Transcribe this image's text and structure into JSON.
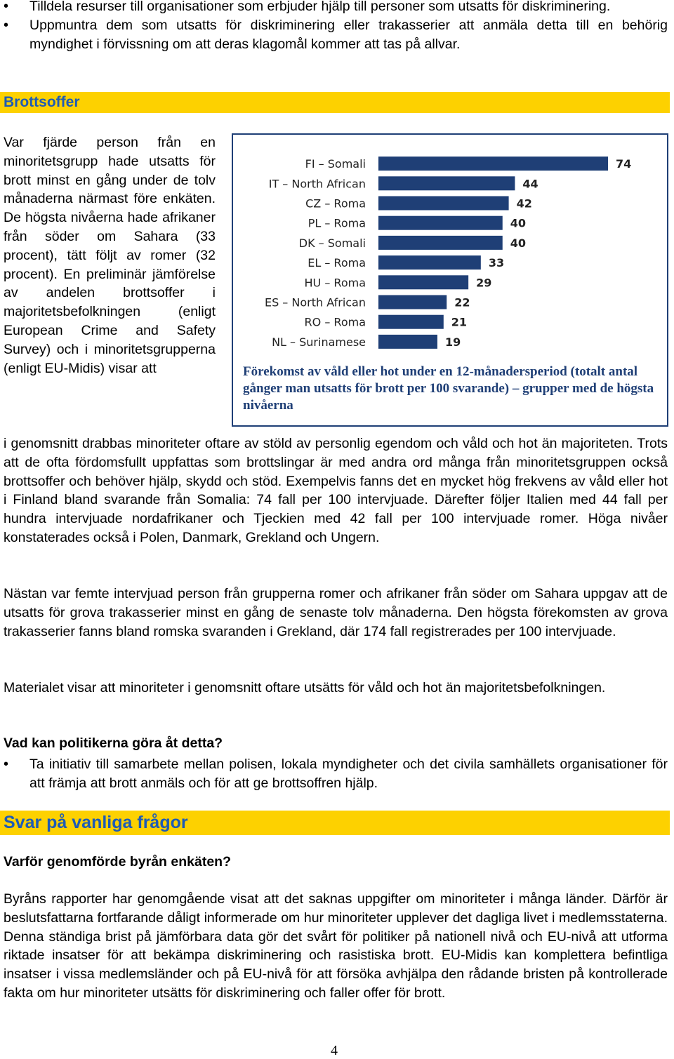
{
  "top_bullets": [
    "Tilldela resurser till organisationer som erbjuder hjälp till personer som utsatts för diskriminering.",
    "Uppmuntra dem som utsatts för diskriminering eller trakasserier att anmäla detta till en behörig myndighet i förvissning om att deras klagomål kommer att tas på allvar."
  ],
  "section1": {
    "title": "Brottsoffer"
  },
  "left_col_text": "Var fjärde person från en minoritetsgrupp hade utsatts för brott minst en gång under de tolv månaderna närmast före enkäten. De högsta nivåerna hade afrikaner från söder om Sahara (33 procent), tätt följt av romer (32 procent). En preliminär jämförelse av andelen brottsoffer i majoritetsbefolkningen (enligt European Crime and Safety Survey) och i minoritetsgrupperna (enligt EU-Midis) visar att",
  "chart_data": {
    "type": "bar",
    "orientation": "horizontal",
    "categories": [
      "FI – Somali",
      "IT – North African",
      "CZ – Roma",
      "PL – Roma",
      "DK – Somali",
      "EL – Roma",
      "HU – Roma",
      "ES – North African",
      "RO – Roma",
      "NL – Surinamese"
    ],
    "values": [
      74,
      44,
      42,
      40,
      40,
      33,
      29,
      22,
      21,
      19
    ],
    "caption": "Förekomst av våld eller hot under en 12-månadersperiod (totalt antal gånger man utsatts för brott per 100 svarande) – grupper med de högsta nivåerna",
    "bar_color": "#1f3f76",
    "xlim": [
      0,
      74
    ]
  },
  "para_continue": "i genomsnitt drabbas minoriteter oftare av stöld av personlig egendom och våld och hot än majoriteten. Trots att de ofta fördomsfullt uppfattas som brottslingar är med andra ord många från minoritetsgruppen också brottsoffer och behöver hjälp, skydd och stöd. Exempelvis fanns det en mycket hög frekvens av våld eller hot i Finland bland svarande från Somalia: 74 fall per 100 intervjuade. Därefter följer Italien med 44 fall per hundra intervjuade nordafrikaner och Tjeckien med 42 fall per 100 intervjuade romer. Höga nivåer konstaterades också i Polen, Danmark, Grekland och Ungern.",
  "para2": "Nästan var femte intervjuad person från grupperna romer och afrikaner från söder om Sahara uppgav att de utsatts för grova trakasserier minst en gång de senaste tolv månaderna. Den högsta förekomsten av grova trakasserier fanns bland romska svaranden i Grekland, där 174 fall registrerades per 100 intervjuade.",
  "para3": "Materialet visar att minoriteter i genomsnitt oftare utsätts för våld och hot än majoritetsbefolkningen.",
  "policy_heading": "Vad kan politikerna göra åt detta?",
  "policy_bullets": [
    "Ta initiativ till samarbete mellan polisen, lokala myndigheter och det civila samhällets organisationer för att främja att brott anmäls och för att ge brottsoffren hjälp."
  ],
  "section2": {
    "title": "Svar på vanliga frågor"
  },
  "faq_heading": "Varför genomförde byrån enkäten?",
  "faq_text": "Byråns rapporter har genomgående visat att det saknas uppgifter om minoriteter i många länder. Därför är beslutsfattarna fortfarande dåligt informerade om hur minoriteter upplever det dagliga livet i medlemsstaterna. Denna ständiga brist på jämförbara data gör det svårt för politiker på nationell nivå och EU-nivå att utforma riktade insatser för att bekämpa diskriminering och rasistiska brott. EU-Midis kan komplettera befintliga insatser i vissa medlemsländer och på EU-nivå för att försöka avhjälpa den rådande bristen på kontrollerade fakta om hur minoriteter utsätts för diskriminering och faller offer för brott.",
  "page_number": "4"
}
